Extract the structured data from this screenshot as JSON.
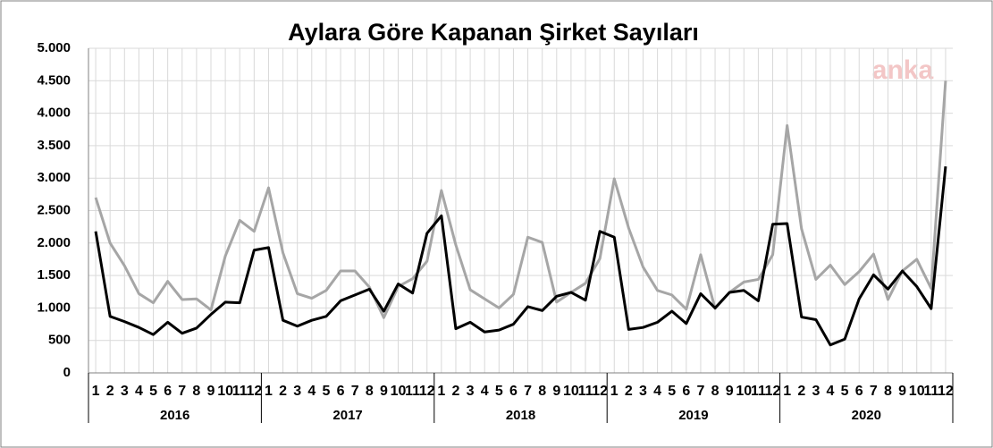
{
  "chart_data": {
    "type": "line",
    "title": "Aylara Göre Kapanan Şirket Sayıları",
    "watermark": "anka",
    "categories": [
      "1",
      "2",
      "3",
      "4",
      "5",
      "6",
      "7",
      "8",
      "9",
      "10",
      "11",
      "12",
      "1",
      "2",
      "3",
      "4",
      "5",
      "6",
      "7",
      "8",
      "9",
      "10",
      "11",
      "12",
      "1",
      "2",
      "3",
      "4",
      "5",
      "6",
      "7",
      "8",
      "9",
      "10",
      "11",
      "12",
      "1",
      "2",
      "3",
      "4",
      "5",
      "6",
      "7",
      "8",
      "9",
      "10",
      "11",
      "12",
      "1",
      "2",
      "3",
      "4",
      "5",
      "6",
      "7",
      "8",
      "9",
      "10",
      "11",
      "12"
    ],
    "years": [
      "2016",
      "2017",
      "2018",
      "2019",
      "2020"
    ],
    "series": [
      {
        "color": "#a6a6a6",
        "values": [
          2700,
          2000,
          1650,
          1220,
          1080,
          1410,
          1130,
          1140,
          970,
          1800,
          2350,
          2180,
          2850,
          1850,
          1220,
          1150,
          1270,
          1570,
          1570,
          1320,
          850,
          1330,
          1450,
          1720,
          2810,
          1970,
          1280,
          1140,
          1000,
          1210,
          2090,
          2010,
          1090,
          1240,
          1380,
          1760,
          2990,
          2230,
          1630,
          1270,
          1200,
          980,
          1820,
          990,
          1240,
          1400,
          1440,
          1820,
          3810,
          2220,
          1440,
          1660,
          1360,
          1560,
          1830,
          1130,
          1570,
          1750,
          1300,
          4500
        ]
      },
      {
        "color": "#000000",
        "values": [
          2180,
          870,
          790,
          700,
          590,
          780,
          610,
          690,
          900,
          1090,
          1080,
          1890,
          1930,
          810,
          720,
          810,
          870,
          1110,
          1200,
          1290,
          950,
          1370,
          1230,
          2150,
          2420,
          680,
          780,
          630,
          660,
          750,
          1020,
          960,
          1180,
          1240,
          1120,
          2180,
          2090,
          670,
          700,
          780,
          950,
          760,
          1220,
          1000,
          1240,
          1270,
          1110,
          2290,
          2300,
          860,
          820,
          430,
          520,
          1140,
          1510,
          1290,
          1570,
          1330,
          990,
          3180
        ]
      }
    ],
    "ylim": [
      0,
      5000
    ],
    "yticks": [
      {
        "value": 0,
        "label": "0"
      },
      {
        "value": 500,
        "label": "500"
      },
      {
        "value": 1000,
        "label": "1.000"
      },
      {
        "value": 1500,
        "label": "1.500"
      },
      {
        "value": 2000,
        "label": "2.000"
      },
      {
        "value": 2500,
        "label": "2.500"
      },
      {
        "value": 3000,
        "label": "3.000"
      },
      {
        "value": 3500,
        "label": "3.500"
      },
      {
        "value": 4000,
        "label": "4.000"
      },
      {
        "value": 4500,
        "label": "4.500"
      },
      {
        "value": 5000,
        "label": "5.000"
      }
    ],
    "grid": true
  }
}
